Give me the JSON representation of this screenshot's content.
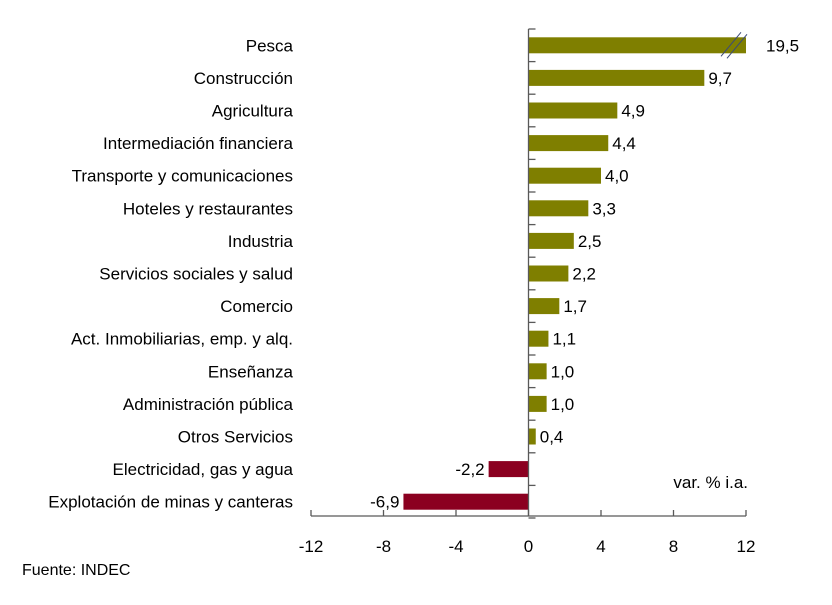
{
  "chart_data": {
    "type": "bar",
    "orientation": "horizontal",
    "categories": [
      "Pesca",
      "Construcción",
      "Agricultura",
      "Intermediación financiera",
      "Transporte y comunicaciones",
      "Hoteles y restaurantes",
      "Industria",
      "Servicios sociales y salud",
      "Comercio",
      "Act. Inmobiliarias, emp. y alq.",
      "Enseñanza",
      "Administración pública",
      "Otros Servicios",
      "Electricidad, gas y agua",
      "Explotación de minas y canteras"
    ],
    "values": [
      19.5,
      9.7,
      4.9,
      4.4,
      4.0,
      3.3,
      2.5,
      2.2,
      1.7,
      1.1,
      1.0,
      1.0,
      0.4,
      -2.2,
      -6.9
    ],
    "data_labels": [
      "19,5",
      "9,7",
      "4,9",
      "4,4",
      "4,0",
      "3,3",
      "2,5",
      "2,2",
      "1,7",
      "1,1",
      "1,0",
      "1,0",
      "0,4",
      "-2,2",
      "-6,9"
    ],
    "xlim": [
      -12,
      12
    ],
    "xticks": [
      -12,
      -8,
      -4,
      0,
      4,
      8,
      12
    ],
    "xtick_labels": [
      "-12",
      "-8",
      "-4",
      "0",
      "4",
      "8",
      "12"
    ],
    "axis_break": "Pesca bar truncated at 12",
    "unit_label": "var. % i.a.",
    "grid": false,
    "colors": {
      "positive": "#7f7f00",
      "negative": "#8b0020",
      "break_marks": "#3b4a7a"
    }
  },
  "source": "Fuente: INDEC"
}
